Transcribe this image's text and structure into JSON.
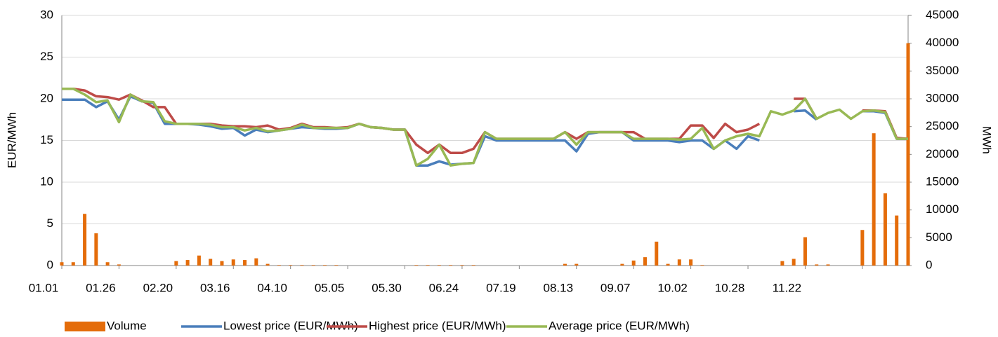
{
  "chart_data": {
    "type": "combo",
    "y_label": "EUR/MWh",
    "y2_label": "MWh",
    "categories": [
      "01.01",
      null,
      null,
      null,
      null,
      "01.26",
      null,
      null,
      null,
      null,
      "02.20",
      null,
      null,
      null,
      null,
      "03.16",
      null,
      null,
      null,
      null,
      "04.10",
      null,
      null,
      null,
      null,
      "05.05",
      null,
      null,
      null,
      null,
      "05.30",
      null,
      null,
      null,
      null,
      "06.24",
      null,
      null,
      null,
      null,
      "07.19",
      null,
      null,
      null,
      null,
      "08.13",
      null,
      null,
      null,
      null,
      "09.07",
      null,
      null,
      null,
      null,
      "10.02",
      null,
      null,
      null,
      null,
      "10.28",
      null,
      null,
      null,
      null,
      "11.22",
      null,
      null,
      null,
      null,
      null,
      null,
      null,
      null,
      null
    ],
    "ylim": [
      0,
      30
    ],
    "yticks": [
      0,
      5,
      10,
      15,
      20,
      25,
      30
    ],
    "y2lim": [
      0,
      45000
    ],
    "y2ticks": [
      0,
      5000,
      10000,
      15000,
      20000,
      25000,
      30000,
      35000,
      40000,
      45000
    ],
    "grid": true,
    "legend": "bottom",
    "series": [
      {
        "name": "Volume",
        "type": "bar",
        "axis": "y2",
        "color": "#e46c0a",
        "values": [
          600,
          600,
          9300,
          5800,
          600,
          200,
          0,
          0,
          0,
          0,
          800,
          1000,
          1800,
          1200,
          800,
          1100,
          1000,
          1300,
          300,
          100,
          100,
          100,
          100,
          100,
          100,
          0,
          0,
          0,
          0,
          0,
          0,
          100,
          100,
          100,
          100,
          100,
          100,
          0,
          0,
          0,
          0,
          0,
          0,
          0,
          300,
          300,
          0,
          0,
          0,
          300,
          900,
          1500,
          4300,
          300,
          1100,
          1100,
          100,
          0,
          0,
          0,
          0,
          0,
          0,
          800,
          1200,
          5100,
          200,
          200,
          0,
          0,
          6400,
          23800,
          13000,
          9000,
          40000
        ]
      },
      {
        "name": "Lowest price (EUR/MWh)",
        "type": "line",
        "color": "#4a7ebb",
        "values": [
          19.9,
          19.9,
          19.9,
          19.0,
          19.7,
          17.5,
          20.3,
          19.7,
          19.5,
          17.0,
          17.0,
          17.0,
          16.9,
          16.7,
          16.4,
          16.5,
          15.6,
          16.3,
          16.0,
          16.2,
          16.4,
          16.6,
          16.5,
          16.4,
          16.4,
          16.5,
          17.0,
          16.6,
          16.5,
          16.3,
          16.3,
          12.0,
          12.0,
          12.5,
          12.1,
          12.2,
          12.3,
          15.5,
          15.0,
          15.0,
          15.0,
          15.0,
          15.0,
          15.0,
          15.0,
          13.7,
          15.8,
          16.0,
          16.0,
          16.0,
          15.0,
          15.0,
          15.0,
          15.0,
          14.8,
          15.0,
          15.0,
          14.0,
          15.0,
          14.0,
          15.5,
          15.0,
          null,
          null,
          18.5,
          18.6,
          17.5,
          null,
          null,
          null,
          18.5,
          18.5,
          18.3,
          15.2,
          15.2
        ]
      },
      {
        "name": "Highest price (EUR/MWh)",
        "type": "line",
        "color": "#be4b48",
        "values": [
          21.2,
          21.2,
          21.0,
          20.3,
          20.2,
          19.9,
          20.5,
          19.8,
          19.0,
          19.0,
          17.0,
          17.0,
          17.0,
          17.0,
          16.8,
          16.7,
          16.7,
          16.6,
          16.8,
          16.3,
          16.5,
          17.0,
          16.6,
          16.6,
          16.5,
          16.6,
          17.0,
          16.6,
          16.5,
          16.3,
          16.3,
          14.5,
          13.5,
          14.5,
          13.5,
          13.5,
          14.0,
          16.0,
          15.2,
          15.2,
          15.2,
          15.2,
          15.2,
          15.2,
          16.0,
          15.2,
          16.0,
          16.0,
          16.0,
          16.0,
          16.0,
          15.2,
          15.2,
          15.2,
          15.2,
          16.8,
          16.8,
          15.3,
          17.0,
          16.0,
          16.3,
          17.0,
          null,
          null,
          20.0,
          20.0,
          17.6,
          null,
          null,
          null,
          18.6,
          18.6,
          18.5,
          15.3,
          15.2
        ]
      },
      {
        "name": "Average price (EUR/MWh)",
        "type": "line",
        "color": "#98b954",
        "values": [
          21.2,
          21.2,
          20.5,
          19.6,
          19.8,
          17.2,
          20.5,
          19.7,
          19.6,
          17.3,
          17.0,
          17.0,
          17.0,
          16.9,
          16.6,
          16.6,
          16.2,
          16.5,
          16.1,
          16.2,
          16.4,
          16.9,
          16.5,
          16.5,
          16.5,
          16.5,
          17.0,
          16.6,
          16.5,
          16.3,
          16.3,
          12.0,
          12.8,
          14.5,
          12.0,
          12.2,
          12.3,
          16.0,
          15.2,
          15.2,
          15.2,
          15.2,
          15.2,
          15.2,
          16.0,
          14.5,
          16.0,
          16.0,
          16.0,
          16.0,
          15.2,
          15.2,
          15.2,
          15.2,
          15.1,
          15.2,
          16.5,
          14.0,
          15.0,
          15.5,
          15.8,
          15.5,
          18.5,
          18.1,
          18.6,
          20.0,
          17.6,
          18.3,
          18.7,
          17.6,
          18.5,
          18.6,
          18.4,
          15.2,
          15.2
        ]
      }
    ]
  }
}
